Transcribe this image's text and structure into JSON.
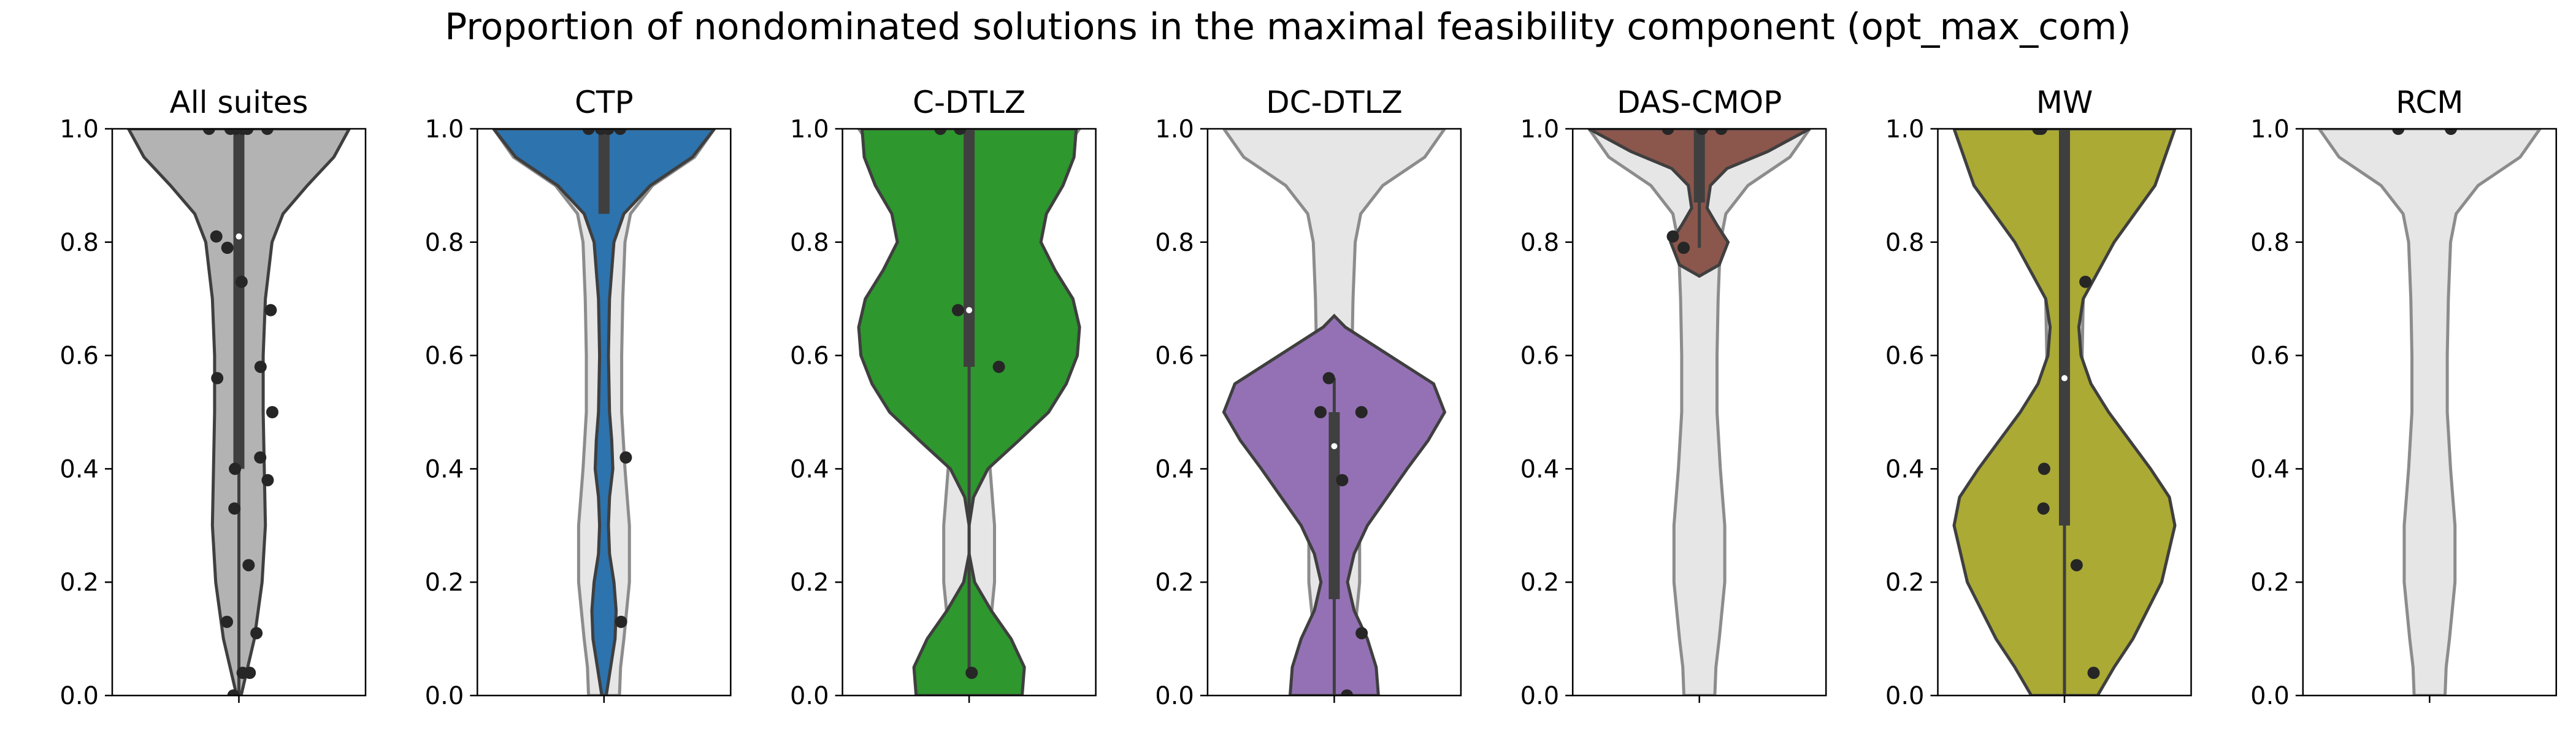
{
  "figure_title": "Proportion of nondominated solutions in the maximal feasibility component (opt_max_com)",
  "colors": {
    "background_violin": "#e6e6e6",
    "background_violin_edge": "#8c8c8c",
    "violin_edge": "#3f3f3f",
    "box": "#3f3f3f",
    "median": "#ffffff",
    "points": "#262626"
  },
  "chart_data": [
    {
      "type": "violin",
      "title": "All suites",
      "color": "#b3b3b3",
      "ylim": [
        0,
        1
      ],
      "yticks": [
        "0.0",
        "0.2",
        "0.4",
        "0.6",
        "0.8",
        "1.0"
      ],
      "background_reference": false,
      "density": [
        [
          0.0,
          0.02
        ],
        [
          0.1,
          0.14
        ],
        [
          0.2,
          0.21
        ],
        [
          0.3,
          0.24
        ],
        [
          0.4,
          0.23
        ],
        [
          0.5,
          0.22
        ],
        [
          0.6,
          0.22
        ],
        [
          0.7,
          0.24
        ],
        [
          0.8,
          0.3
        ],
        [
          0.85,
          0.4
        ],
        [
          0.9,
          0.62
        ],
        [
          0.95,
          0.86
        ],
        [
          1.0,
          1.0
        ]
      ],
      "box": {
        "q1": 0.4,
        "median": 0.81,
        "q3": 1.0,
        "whisker_low": 0.0,
        "whisker_high": 1.0
      },
      "points": [
        1.0,
        1.0,
        1.0,
        1.0,
        1.0,
        1.0,
        0.81,
        0.79,
        0.73,
        0.68,
        0.58,
        0.56,
        0.5,
        0.42,
        0.4,
        0.38,
        0.33,
        0.23,
        0.13,
        0.11,
        0.04,
        0.04,
        0.0
      ]
    },
    {
      "type": "violin",
      "title": "CTP",
      "color": "#2d73ad",
      "ylim": [
        0,
        1
      ],
      "yticks": [
        "0.0",
        "0.2",
        "0.4",
        "0.6",
        "0.8",
        "1.0"
      ],
      "background_reference": true,
      "density": [
        [
          0.0,
          0.02
        ],
        [
          0.05,
          0.06
        ],
        [
          0.1,
          0.1
        ],
        [
          0.15,
          0.11
        ],
        [
          0.2,
          0.09
        ],
        [
          0.25,
          0.05
        ],
        [
          0.3,
          0.04
        ],
        [
          0.35,
          0.05
        ],
        [
          0.4,
          0.08
        ],
        [
          0.45,
          0.07
        ],
        [
          0.5,
          0.05
        ],
        [
          0.6,
          0.04
        ],
        [
          0.7,
          0.05
        ],
        [
          0.8,
          0.09
        ],
        [
          0.85,
          0.18
        ],
        [
          0.9,
          0.42
        ],
        [
          0.95,
          0.8
        ],
        [
          1.0,
          1.0
        ]
      ],
      "box": {
        "q1": 0.85,
        "median": 1.0,
        "q3": 1.0,
        "whisker_low": 0.85,
        "whisker_high": 1.0
      },
      "points": [
        1.0,
        1.0,
        1.0,
        1.0,
        0.42,
        0.13
      ]
    },
    {
      "type": "violin",
      "title": "C-DTLZ",
      "color": "#2e972e",
      "ylim": [
        0,
        1
      ],
      "yticks": [
        "0.0",
        "0.2",
        "0.4",
        "0.6",
        "0.8",
        "1.0"
      ],
      "background_reference": true,
      "density": [
        [
          0.0,
          0.48
        ],
        [
          0.05,
          0.5
        ],
        [
          0.1,
          0.38
        ],
        [
          0.15,
          0.2
        ],
        [
          0.2,
          0.05
        ],
        [
          0.25,
          0.0
        ],
        [
          0.3,
          0.0
        ],
        [
          0.35,
          0.04
        ],
        [
          0.4,
          0.17
        ],
        [
          0.45,
          0.45
        ],
        [
          0.5,
          0.72
        ],
        [
          0.55,
          0.88
        ],
        [
          0.6,
          0.98
        ],
        [
          0.65,
          1.0
        ],
        [
          0.7,
          0.94
        ],
        [
          0.75,
          0.78
        ],
        [
          0.8,
          0.65
        ],
        [
          0.85,
          0.7
        ],
        [
          0.9,
          0.85
        ],
        [
          0.95,
          0.95
        ],
        [
          1.0,
          0.97
        ]
      ],
      "box": {
        "q1": 0.58,
        "median": 0.68,
        "q3": 1.0,
        "whisker_low": 0.04,
        "whisker_high": 1.0
      },
      "points": [
        1.0,
        1.0,
        0.68,
        0.58,
        0.04
      ]
    },
    {
      "type": "violin",
      "title": "DC-DTLZ",
      "color": "#9471b5",
      "ylim": [
        0,
        1
      ],
      "yticks": [
        "0.0",
        "0.2",
        "0.4",
        "0.6",
        "0.8",
        "1.0"
      ],
      "background_reference": true,
      "density": [
        [
          0.0,
          0.4
        ],
        [
          0.05,
          0.38
        ],
        [
          0.1,
          0.3
        ],
        [
          0.15,
          0.18
        ],
        [
          0.2,
          0.12
        ],
        [
          0.25,
          0.18
        ],
        [
          0.3,
          0.3
        ],
        [
          0.35,
          0.48
        ],
        [
          0.4,
          0.66
        ],
        [
          0.45,
          0.85
        ],
        [
          0.5,
          1.0
        ],
        [
          0.55,
          0.9
        ],
        [
          0.6,
          0.5
        ],
        [
          0.65,
          0.1
        ],
        [
          0.67,
          0.0
        ]
      ],
      "box": {
        "q1": 0.17,
        "median": 0.44,
        "q3": 0.5,
        "whisker_low": 0.0,
        "whisker_high": 0.56
      },
      "points": [
        0.56,
        0.5,
        0.5,
        0.38,
        0.11,
        0.0
      ]
    },
    {
      "type": "violin",
      "title": "DAS-CMOP",
      "color": "#8b564c",
      "ylim": [
        0,
        1
      ],
      "yticks": [
        "0.0",
        "0.2",
        "0.4",
        "0.6",
        "0.8",
        "1.0"
      ],
      "background_reference": true,
      "density": [
        [
          0.74,
          0.0
        ],
        [
          0.76,
          0.18
        ],
        [
          0.8,
          0.26
        ],
        [
          0.83,
          0.16
        ],
        [
          0.86,
          0.07
        ],
        [
          0.9,
          0.1
        ],
        [
          0.93,
          0.25
        ],
        [
          0.96,
          0.62
        ],
        [
          1.0,
          1.0
        ]
      ],
      "box": {
        "q1": 0.87,
        "median": 1.0,
        "q3": 1.0,
        "whisker_low": 0.79,
        "whisker_high": 1.0
      },
      "points": [
        1.0,
        1.0,
        1.0,
        0.81,
        0.79
      ]
    },
    {
      "type": "violin",
      "title": "MW",
      "color": "#aaaa35",
      "ylim": [
        0,
        1
      ],
      "yticks": [
        "0.0",
        "0.2",
        "0.4",
        "0.6",
        "0.8",
        "1.0"
      ],
      "background_reference": true,
      "density": [
        [
          0.0,
          0.3
        ],
        [
          0.05,
          0.45
        ],
        [
          0.1,
          0.62
        ],
        [
          0.2,
          0.88
        ],
        [
          0.3,
          1.0
        ],
        [
          0.35,
          0.95
        ],
        [
          0.4,
          0.78
        ],
        [
          0.5,
          0.4
        ],
        [
          0.55,
          0.24
        ],
        [
          0.6,
          0.15
        ],
        [
          0.65,
          0.13
        ],
        [
          0.7,
          0.17
        ],
        [
          0.8,
          0.45
        ],
        [
          0.9,
          0.82
        ],
        [
          1.0,
          1.0
        ]
      ],
      "box": {
        "q1": 0.3,
        "median": 0.56,
        "q3": 1.0,
        "whisker_low": 0.0,
        "whisker_high": 1.0
      },
      "points": [
        1.0,
        1.0,
        0.73,
        0.4,
        0.33,
        0.23,
        0.04
      ]
    },
    {
      "type": "violin",
      "title": "RCM",
      "color": "#e6e6e6",
      "ylim": [
        0,
        1
      ],
      "yticks": [
        "0.0",
        "0.2",
        "0.4",
        "0.6",
        "0.8",
        "1.0"
      ],
      "background_reference": true,
      "density": [],
      "box": null,
      "points": [
        1.0,
        1.0
      ]
    }
  ],
  "reference_density": [
    [
      0.0,
      0.14
    ],
    [
      0.05,
      0.15
    ],
    [
      0.1,
      0.18
    ],
    [
      0.2,
      0.23
    ],
    [
      0.3,
      0.23
    ],
    [
      0.4,
      0.19
    ],
    [
      0.5,
      0.16
    ],
    [
      0.6,
      0.16
    ],
    [
      0.7,
      0.17
    ],
    [
      0.8,
      0.19
    ],
    [
      0.85,
      0.24
    ],
    [
      0.9,
      0.44
    ],
    [
      0.95,
      0.82
    ],
    [
      1.0,
      1.0
    ]
  ]
}
